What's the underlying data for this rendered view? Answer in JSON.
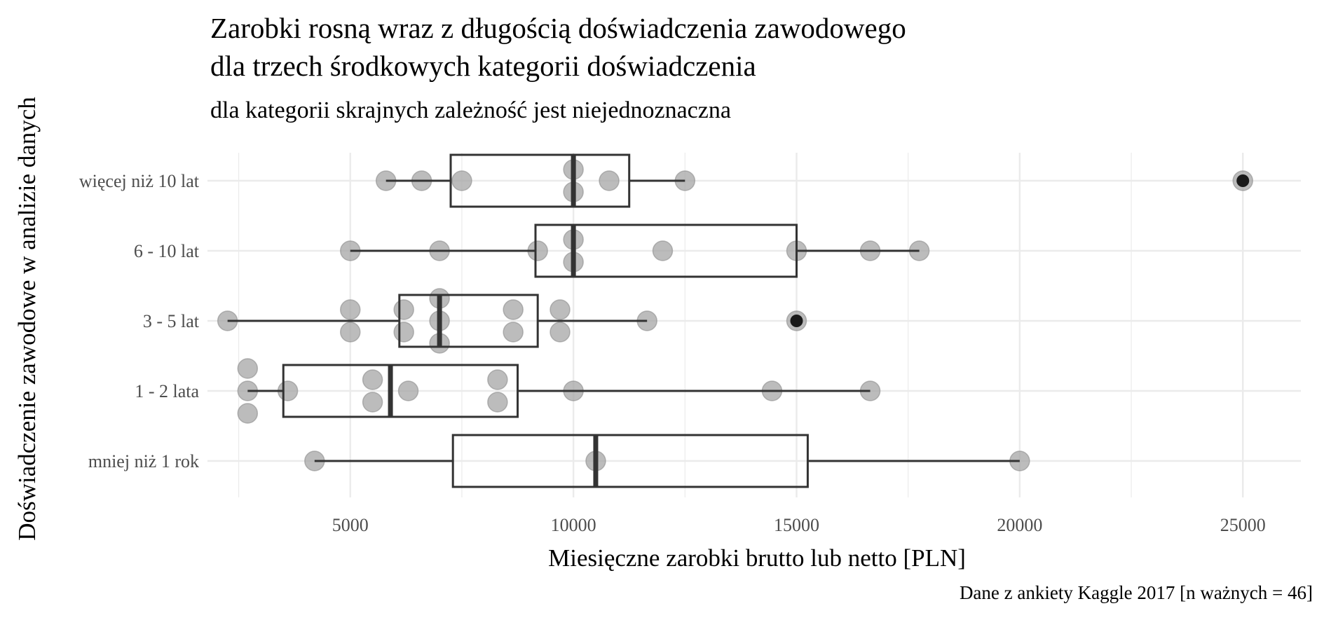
{
  "chart_data": {
    "type": "boxplot",
    "orientation": "horizontal",
    "title": "Zarobki rosną wraz z długością doświadczenia zawodowego\ndla trzech środkowych kategorii doświadczenia",
    "title_lines": [
      "Zarobki rosną wraz z długością doświadczenia zawodowego",
      "dla trzech środkowych kategorii doświadczenia"
    ],
    "subtitle": "dla kategorii skrajnych zależność jest niejednoznaczna",
    "xlabel": "Miesięczne zarobki brutto lub netto [PLN]",
    "ylabel": "Doświadczenie zawodowe w analizie danych",
    "caption": "Dane z ankiety Kaggle 2017 [n ważnych = 46]",
    "xlim": [
      1800,
      26300
    ],
    "x_ticks": [
      5000,
      10000,
      15000,
      20000,
      25000
    ],
    "x_tick_labels": [
      "5000",
      "10000",
      "15000",
      "20000",
      "25000"
    ],
    "categories": [
      "mniej niż 1 rok",
      "1 - 2 lata",
      "3 - 5 lat",
      "6 - 10 lat",
      "więcej niż 10 lat"
    ],
    "grid": true,
    "legend": "none",
    "colors": {
      "box": "#333333",
      "point": "#a6a6a6",
      "outlier": "#1a1a1a",
      "grid": "#ebebeb"
    },
    "series": [
      {
        "category": "mniej niż 1 rok",
        "whisker_low": 4200,
        "q1": 7300,
        "median": 10500,
        "q3": 15250,
        "whisker_high": 20000,
        "outliers": [],
        "points": [
          4200,
          10500,
          20000
        ]
      },
      {
        "category": "1 - 2 lata",
        "whisker_low": 2700,
        "q1": 3500,
        "median": 5900,
        "q3": 8750,
        "whisker_high": 16650,
        "outliers": [],
        "points": [
          2700,
          2700,
          2700,
          3600,
          5500,
          5500,
          6300,
          8300,
          8300,
          10000,
          14450,
          16650
        ]
      },
      {
        "category": "3 - 5 lat",
        "whisker_low": 2250,
        "q1": 6100,
        "median": 7000,
        "q3": 9200,
        "whisker_high": 11650,
        "outliers": [
          15000
        ],
        "points": [
          2250,
          5000,
          5000,
          6200,
          6200,
          7000,
          7000,
          7000,
          8650,
          8650,
          9700,
          9700,
          11650,
          15000
        ]
      },
      {
        "category": "6 - 10 lat",
        "whisker_low": 5000,
        "q1": 9150,
        "median": 10000,
        "q3": 15000,
        "whisker_high": 17750,
        "outliers": [],
        "points": [
          5000,
          7000,
          9200,
          10000,
          10000,
          12000,
          15000,
          16650,
          17750
        ]
      },
      {
        "category": "więcej niż 10 lat",
        "whisker_low": 5800,
        "q1": 7250,
        "median": 10000,
        "q3": 11250,
        "whisker_high": 12500,
        "outliers": [
          25000
        ],
        "points": [
          5800,
          6600,
          7500,
          10000,
          10000,
          10800,
          12500,
          25000
        ]
      }
    ]
  }
}
